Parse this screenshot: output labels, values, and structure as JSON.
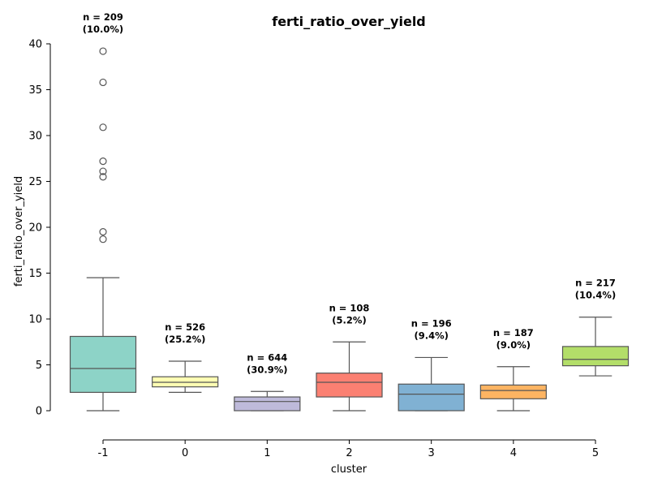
{
  "chart_data": {
    "type": "box",
    "title": "ferti_ratio_over_yield",
    "xlabel": "cluster",
    "ylabel": "ferti_ratio_over_yield",
    "ylim": [
      -3.2,
      40
    ],
    "yticks": [
      0,
      5,
      10,
      15,
      20,
      25,
      30,
      35,
      40
    ],
    "grid": false,
    "legend": "none",
    "categories": [
      "-1",
      "0",
      "1",
      "2",
      "3",
      "4",
      "5"
    ],
    "boxes": [
      {
        "cluster": "-1",
        "whisker_low": 0.0,
        "q1": 2.0,
        "median": 4.6,
        "q3": 8.1,
        "whisker_high": 14.5,
        "outliers": [
          18.7,
          19.5,
          25.5,
          26.1,
          27.2,
          30.9,
          35.8,
          39.2
        ],
        "n_label": "n = 209",
        "pct_label": "(10.0%)",
        "color": "#8dd3c7"
      },
      {
        "cluster": "0",
        "whisker_low": 2.0,
        "q1": 2.6,
        "median": 3.1,
        "q3": 3.7,
        "whisker_high": 5.4,
        "outliers": [],
        "n_label": "n = 526",
        "pct_label": "(25.2%)",
        "color": "#ffffb3"
      },
      {
        "cluster": "1",
        "whisker_low": 0.0,
        "q1": 0.0,
        "median": 1.0,
        "q3": 1.5,
        "whisker_high": 2.1,
        "outliers": [],
        "n_label": "n = 644",
        "pct_label": "(30.9%)",
        "color": "#bebada"
      },
      {
        "cluster": "2",
        "whisker_low": 0.0,
        "q1": 1.5,
        "median": 3.1,
        "q3": 4.1,
        "whisker_high": 7.5,
        "outliers": [],
        "n_label": "n = 108",
        "pct_label": "(5.2%)",
        "color": "#fb8072"
      },
      {
        "cluster": "3",
        "whisker_low": 0.0,
        "q1": 0.0,
        "median": 1.8,
        "q3": 2.9,
        "whisker_high": 5.8,
        "outliers": [],
        "n_label": "n = 196",
        "pct_label": "(9.4%)",
        "color": "#80b1d3"
      },
      {
        "cluster": "4",
        "whisker_low": 0.0,
        "q1": 1.3,
        "median": 2.2,
        "q3": 2.8,
        "whisker_high": 4.8,
        "outliers": [],
        "n_label": "n = 187",
        "pct_label": "(9.0%)",
        "color": "#fdb462"
      },
      {
        "cluster": "5",
        "whisker_low": 3.8,
        "q1": 4.9,
        "median": 5.6,
        "q3": 7.0,
        "whisker_high": 10.2,
        "outliers": [],
        "n_label": "n = 217",
        "pct_label": "(10.4%)",
        "color": "#b3de69"
      }
    ]
  }
}
